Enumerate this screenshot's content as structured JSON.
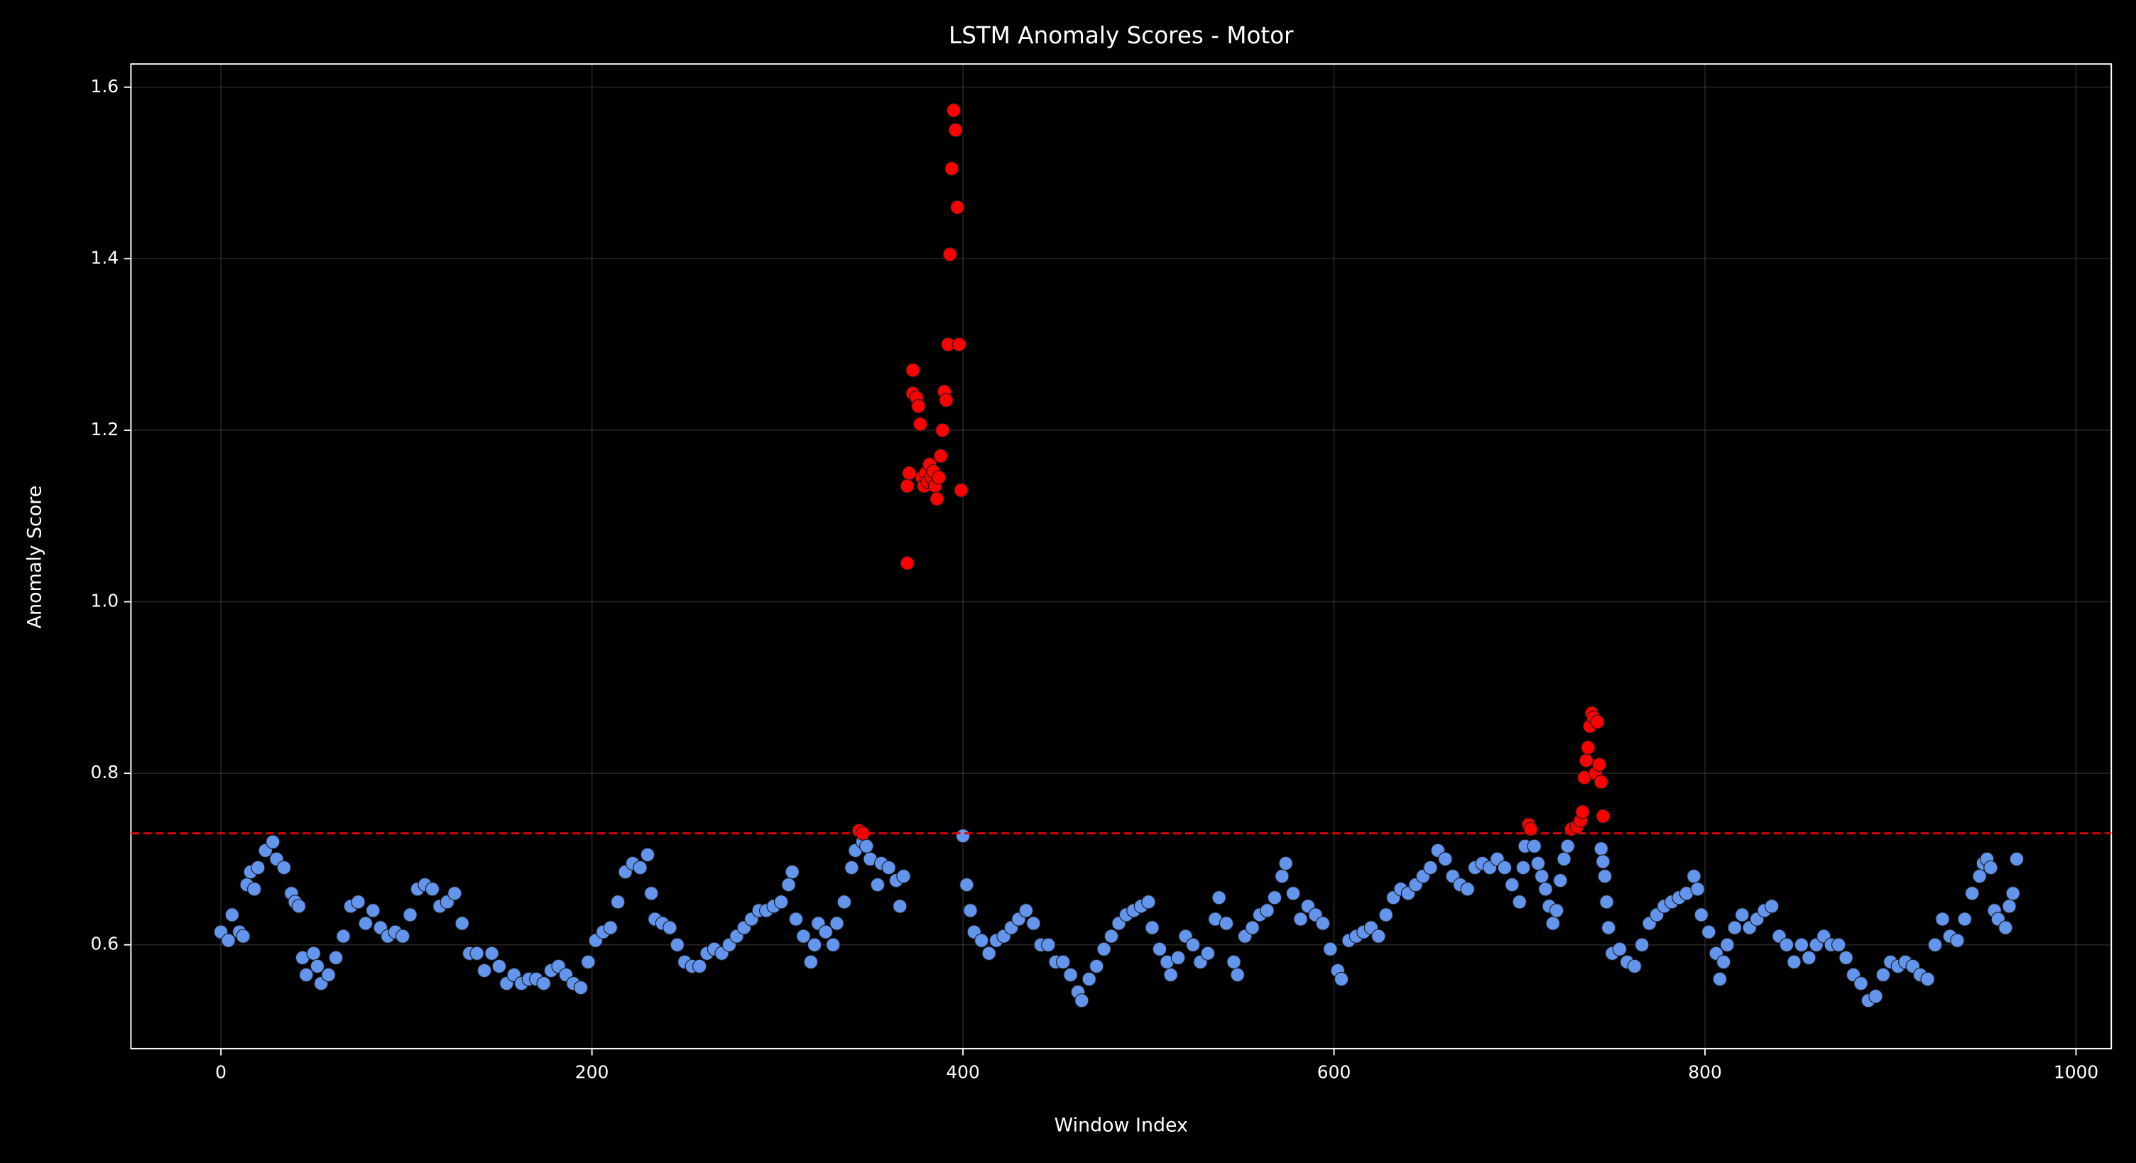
{
  "chart_data": {
    "type": "scatter",
    "title": "LSTM Anomaly Scores - Motor",
    "x_label": "Window Index",
    "y_label": "Anomaly Score",
    "xlim": [
      -48.5,
      1019
    ],
    "ylim": [
      0.479,
      1.627
    ],
    "xticks": [
      0,
      200,
      400,
      600,
      800,
      1000
    ],
    "yticks": [
      0.6,
      0.8,
      {
        "value": 1,
        "label": "1.0"
      },
      1.2,
      1.4,
      1.6
    ],
    "grid": true,
    "threshold": 0.73,
    "threshold_color": "#e00000",
    "series": [
      {
        "color": "#6495ed",
        "x": [
          0,
          4,
          6,
          10,
          12,
          14,
          16,
          18,
          20,
          24,
          28,
          30,
          34,
          38,
          40,
          42,
          44,
          46,
          50,
          52,
          54,
          58,
          62,
          66,
          70,
          74,
          78,
          82,
          86,
          90,
          94,
          98,
          102,
          106,
          110,
          114,
          118,
          122,
          126,
          130,
          134,
          138,
          142,
          146,
          150,
          154,
          158,
          162,
          166,
          170,
          174,
          178,
          182,
          186,
          190,
          194,
          198,
          202,
          206,
          210,
          214,
          218,
          222,
          226,
          230,
          232,
          234,
          238,
          242,
          246,
          250,
          254,
          258,
          262,
          266,
          270,
          274,
          278,
          282,
          286,
          290,
          294,
          298,
          302,
          306,
          308,
          310,
          314,
          318,
          320,
          322,
          326,
          330,
          332,
          336,
          340,
          342,
          346,
          348,
          350,
          354,
          356,
          360,
          364,
          366,
          368,
          400,
          402,
          404,
          406,
          410,
          414,
          418,
          422,
          426,
          430,
          434,
          438,
          442,
          446,
          450,
          454,
          458,
          462,
          464,
          468,
          472,
          476,
          480,
          484,
          488,
          492,
          496,
          500,
          502,
          506,
          510,
          512,
          516,
          520,
          524,
          528,
          532,
          536,
          538,
          542,
          546,
          548,
          552,
          556,
          560,
          564,
          568,
          572,
          574,
          578,
          582,
          586,
          590,
          594,
          598,
          602,
          604,
          608,
          612,
          616,
          620,
          624,
          628,
          632,
          636,
          640,
          644,
          648,
          652,
          656,
          660,
          664,
          668,
          672,
          676,
          680,
          684,
          688,
          692,
          696,
          700,
          702,
          703,
          708,
          710,
          712,
          714,
          716,
          718,
          720,
          722,
          724,
          726,
          744,
          745,
          746,
          747,
          748,
          750,
          754,
          758,
          762,
          766,
          770,
          774,
          778,
          782,
          786,
          790,
          794,
          796,
          798,
          802,
          806,
          808,
          810,
          812,
          816,
          820,
          824,
          828,
          832,
          836,
          840,
          844,
          848,
          852,
          856,
          860,
          864,
          868,
          872,
          876,
          880,
          884,
          888,
          892,
          896,
          900,
          904,
          908,
          912,
          916,
          920,
          924,
          928,
          932,
          936,
          940,
          944,
          948,
          950,
          952,
          954,
          956,
          958,
          962,
          964,
          966,
          968
        ],
        "values": [
          0.615,
          0.605,
          0.635,
          0.615,
          0.61,
          0.67,
          0.685,
          0.665,
          0.69,
          0.71,
          0.72,
          0.7,
          0.69,
          0.66,
          0.65,
          0.645,
          0.585,
          0.565,
          0.59,
          0.575,
          0.555,
          0.565,
          0.585,
          0.61,
          0.645,
          0.65,
          0.625,
          0.64,
          0.62,
          0.61,
          0.615,
          0.61,
          0.635,
          0.665,
          0.67,
          0.665,
          0.645,
          0.65,
          0.66,
          0.625,
          0.59,
          0.59,
          0.57,
          0.59,
          0.575,
          0.555,
          0.565,
          0.555,
          0.56,
          0.56,
          0.555,
          0.57,
          0.575,
          0.565,
          0.555,
          0.55,
          0.58,
          0.605,
          0.615,
          0.62,
          0.65,
          0.685,
          0.695,
          0.69,
          0.705,
          0.66,
          0.63,
          0.625,
          0.62,
          0.6,
          0.58,
          0.575,
          0.575,
          0.59,
          0.595,
          0.59,
          0.6,
          0.61,
          0.62,
          0.63,
          0.64,
          0.64,
          0.645,
          0.65,
          0.67,
          0.685,
          0.63,
          0.61,
          0.58,
          0.6,
          0.625,
          0.615,
          0.6,
          0.625,
          0.65,
          0.69,
          0.71,
          0.72,
          0.715,
          0.7,
          0.67,
          0.695,
          0.69,
          0.675,
          0.645,
          0.68,
          0.727,
          0.67,
          0.64,
          0.615,
          0.605,
          0.59,
          0.605,
          0.61,
          0.62,
          0.63,
          0.64,
          0.625,
          0.6,
          0.6,
          0.58,
          0.58,
          0.565,
          0.545,
          0.535,
          0.56,
          0.575,
          0.595,
          0.61,
          0.625,
          0.635,
          0.64,
          0.645,
          0.65,
          0.62,
          0.595,
          0.58,
          0.565,
          0.585,
          0.61,
          0.6,
          0.58,
          0.59,
          0.63,
          0.655,
          0.625,
          0.58,
          0.565,
          0.61,
          0.62,
          0.635,
          0.64,
          0.655,
          0.68,
          0.695,
          0.66,
          0.63,
          0.645,
          0.635,
          0.625,
          0.595,
          0.57,
          0.56,
          0.605,
          0.61,
          0.615,
          0.62,
          0.61,
          0.635,
          0.655,
          0.665,
          0.66,
          0.67,
          0.68,
          0.69,
          0.71,
          0.7,
          0.68,
          0.67,
          0.665,
          0.69,
          0.695,
          0.69,
          0.7,
          0.69,
          0.67,
          0.65,
          0.69,
          0.715,
          0.715,
          0.695,
          0.68,
          0.665,
          0.645,
          0.625,
          0.64,
          0.675,
          0.7,
          0.715,
          0.712,
          0.697,
          0.68,
          0.65,
          0.62,
          0.59,
          0.595,
          0.58,
          0.575,
          0.6,
          0.625,
          0.635,
          0.645,
          0.65,
          0.655,
          0.66,
          0.68,
          0.665,
          0.635,
          0.615,
          0.59,
          0.56,
          0.58,
          0.6,
          0.62,
          0.635,
          0.62,
          0.63,
          0.64,
          0.645,
          0.61,
          0.6,
          0.58,
          0.6,
          0.585,
          0.6,
          0.61,
          0.6,
          0.6,
          0.585,
          0.565,
          0.555,
          0.535,
          0.54,
          0.565,
          0.58,
          0.575,
          0.58,
          0.575,
          0.565,
          0.56,
          0.6,
          0.63,
          0.61,
          0.605,
          0.63,
          0.66,
          0.68,
          0.695,
          0.7,
          0.69,
          0.64,
          0.63,
          0.62,
          0.645,
          0.66,
          0.7
        ]
      },
      {
        "color": "#ff0000",
        "x": [
          344,
          346,
          370,
          370,
          371,
          373,
          373,
          375,
          376,
          377,
          378,
          379,
          380,
          381,
          382,
          383,
          384,
          385,
          386,
          387,
          388,
          389,
          390,
          391,
          392,
          393,
          394,
          395,
          396,
          397,
          398,
          399,
          705,
          706,
          728,
          731,
          733,
          734,
          735,
          736,
          737,
          738,
          739,
          740,
          741,
          742,
          743,
          744,
          745
        ],
        "values": [
          0.733,
          0.73,
          1.045,
          1.135,
          1.15,
          1.27,
          1.243,
          1.238,
          1.228,
          1.207,
          1.145,
          1.135,
          1.15,
          1.14,
          1.16,
          1.145,
          1.152,
          1.135,
          1.12,
          1.145,
          1.17,
          1.2,
          1.245,
          1.235,
          1.3,
          1.405,
          1.505,
          1.573,
          1.55,
          1.46,
          1.3,
          1.13,
          0.74,
          0.735,
          0.735,
          0.738,
          0.745,
          0.755,
          0.795,
          0.815,
          0.83,
          0.855,
          0.87,
          0.865,
          0.8,
          0.86,
          0.81,
          0.79,
          0.75
        ]
      }
    ]
  }
}
